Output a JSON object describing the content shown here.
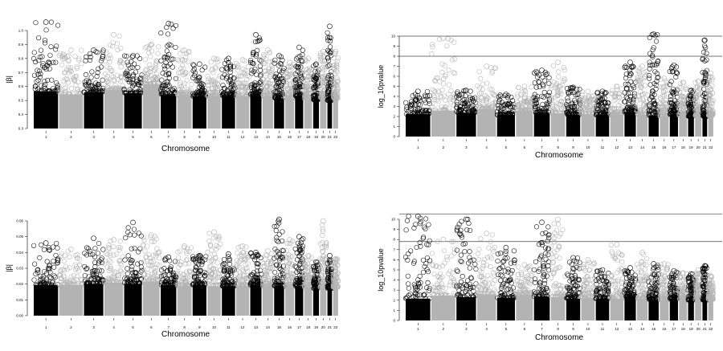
{
  "chart_data": [
    {
      "type": "scatter",
      "subtype": "manhattan",
      "ylabel": "|β|",
      "xlabel": "Chromosome",
      "ylim": [
        0.3,
        1.0
      ],
      "yticks": [
        "0.3",
        "0.4",
        "0.5",
        "0.6",
        "0.7",
        "0.8",
        "0.9",
        "1.0"
      ],
      "chromosomes": [
        "1",
        "2",
        "3",
        "4",
        "5",
        "6",
        "7",
        "8",
        "9",
        "10",
        "11",
        "12",
        "13",
        "14",
        "15",
        "16",
        "17",
        "18",
        "19",
        "20",
        "21",
        "22"
      ],
      "chrom_ticks": [
        "1",
        "2",
        "3",
        "4",
        "5",
        "6",
        "7",
        "8",
        "9",
        "10",
        "11",
        "12",
        "13",
        "14",
        "15",
        "16",
        "17",
        "18",
        "19",
        "20",
        "21",
        "22"
      ],
      "bulk_max": [
        0.67,
        0.64,
        0.66,
        0.68,
        0.65,
        0.74,
        0.64,
        0.63,
        0.62,
        0.62,
        0.63,
        0.62,
        0.64,
        0.62,
        0.6,
        0.6,
        0.62,
        0.6,
        0.58,
        0.6,
        0.58,
        0.6
      ],
      "peak": [
        1.06,
        0.86,
        0.86,
        0.97,
        0.82,
        0.9,
        1.05,
        0.86,
        0.76,
        0.8,
        0.8,
        0.79,
        0.97,
        0.86,
        0.82,
        0.77,
        0.88,
        0.8,
        0.76,
        0.85,
        1.03,
        0.85
      ],
      "hlines": []
    },
    {
      "type": "scatter",
      "subtype": "manhattan",
      "ylabel": "log_10pvalue",
      "xlabel": "Chromosome",
      "ylim": [
        0,
        10
      ],
      "yticks": [
        "0",
        "1",
        "2",
        "3",
        "4",
        "5",
        "6",
        "7",
        "8",
        "9",
        "10"
      ],
      "chromosomes": [
        "1",
        "2",
        "3",
        "4",
        "5",
        "6",
        "7",
        "8",
        "9",
        "10",
        "11",
        "12",
        "13",
        "14",
        "15",
        "16",
        "17",
        "18",
        "19",
        "20",
        "21",
        "22"
      ],
      "chrom_ticks": [
        "1",
        "2",
        "3",
        "4",
        "5",
        "6",
        "7",
        "8",
        "9",
        "10",
        "11",
        "12",
        "13",
        "14",
        "15",
        "16",
        "17",
        "18",
        "19",
        "20",
        "21",
        "22"
      ],
      "bulk_max": [
        3.1,
        3.6,
        3.3,
        3.8,
        3.0,
        3.6,
        3.3,
        3.2,
        3.0,
        3.1,
        3.0,
        3.0,
        3.4,
        3.0,
        2.9,
        2.8,
        3.1,
        2.9,
        2.8,
        2.9,
        2.8,
        2.9
      ],
      "peak": [
        4.5,
        9.8,
        4.6,
        7.0,
        4.2,
        5.0,
        6.6,
        7.4,
        4.9,
        4.5,
        4.5,
        5.0,
        7.4,
        7.0,
        10.2,
        5.8,
        7.1,
        5.4,
        4.6,
        5.5,
        9.6,
        6.3
      ],
      "hlines": [
        10,
        8
      ]
    },
    {
      "type": "scatter",
      "subtype": "manhattan",
      "ylabel": "|β|",
      "xlabel": "Chromosome",
      "ylim": [
        0.0,
        0.06
      ],
      "yticks": [
        "0.00",
        "0.01",
        "0.02",
        "0.03",
        "0.04",
        "0.05",
        "0.06"
      ],
      "chromosomes": [
        "1",
        "2",
        "3",
        "4",
        "5",
        "6",
        "7",
        "8",
        "9",
        "10",
        "11",
        "12",
        "13",
        "14",
        "15",
        "16",
        "17",
        "18",
        "19",
        "20",
        "21",
        "22"
      ],
      "chrom_ticks": [
        "1",
        "2",
        "3",
        "4",
        "5",
        "6",
        "7",
        "8",
        "9",
        "10",
        "11",
        "12",
        "13",
        "14",
        "15",
        "16",
        "17",
        "18",
        "19",
        "20",
        "21",
        "22"
      ],
      "bulk_max": [
        0.027,
        0.027,
        0.028,
        0.029,
        0.028,
        0.03,
        0.027,
        0.026,
        0.027,
        0.026,
        0.026,
        0.026,
        0.027,
        0.026,
        0.026,
        0.025,
        0.026,
        0.025,
        0.024,
        0.025,
        0.024,
        0.025
      ],
      "peak": [
        0.046,
        0.042,
        0.049,
        0.048,
        0.059,
        0.051,
        0.037,
        0.044,
        0.038,
        0.053,
        0.039,
        0.044,
        0.04,
        0.041,
        0.061,
        0.048,
        0.05,
        0.038,
        0.034,
        0.06,
        0.038,
        0.036
      ],
      "hlines": []
    },
    {
      "type": "scatter",
      "subtype": "manhattan",
      "ylabel": "log_10pvalue",
      "xlabel": "Chromosome",
      "ylim": [
        0,
        10
      ],
      "yticks": [
        "0",
        "1",
        "2",
        "3",
        "4",
        "5",
        "6",
        "7",
        "8",
        "9",
        "10"
      ],
      "chromosomes": [
        "1",
        "2",
        "3",
        "4",
        "5",
        "6",
        "7",
        "8",
        "9",
        "10",
        "11",
        "12",
        "13",
        "14",
        "15",
        "16",
        "17",
        "18",
        "19",
        "20",
        "21",
        "22"
      ],
      "chrom_ticks": [
        "1",
        "2",
        "3",
        "4",
        "5",
        "6",
        "7",
        "8",
        "9",
        "10",
        "11",
        "12",
        "13",
        "14",
        "15",
        "16",
        "17",
        "18",
        "19",
        "20",
        "21",
        "22"
      ],
      "bulk_max": [
        3.0,
        3.4,
        3.2,
        3.6,
        3.1,
        3.5,
        3.3,
        3.2,
        3.0,
        3.1,
        3.0,
        3.0,
        3.3,
        3.0,
        2.9,
        2.8,
        3.0,
        2.9,
        2.8,
        2.9,
        2.8,
        2.9
      ],
      "peak": [
        10.3,
        8.0,
        10.0,
        8.6,
        7.2,
        5.5,
        9.7,
        10.0,
        6.2,
        6.0,
        5.0,
        7.5,
        5.2,
        6.7,
        5.6,
        5.6,
        4.9,
        4.7,
        4.6,
        5.0,
        5.4,
        4.4
      ],
      "hlines": [
        10.5,
        7.8
      ]
    }
  ]
}
